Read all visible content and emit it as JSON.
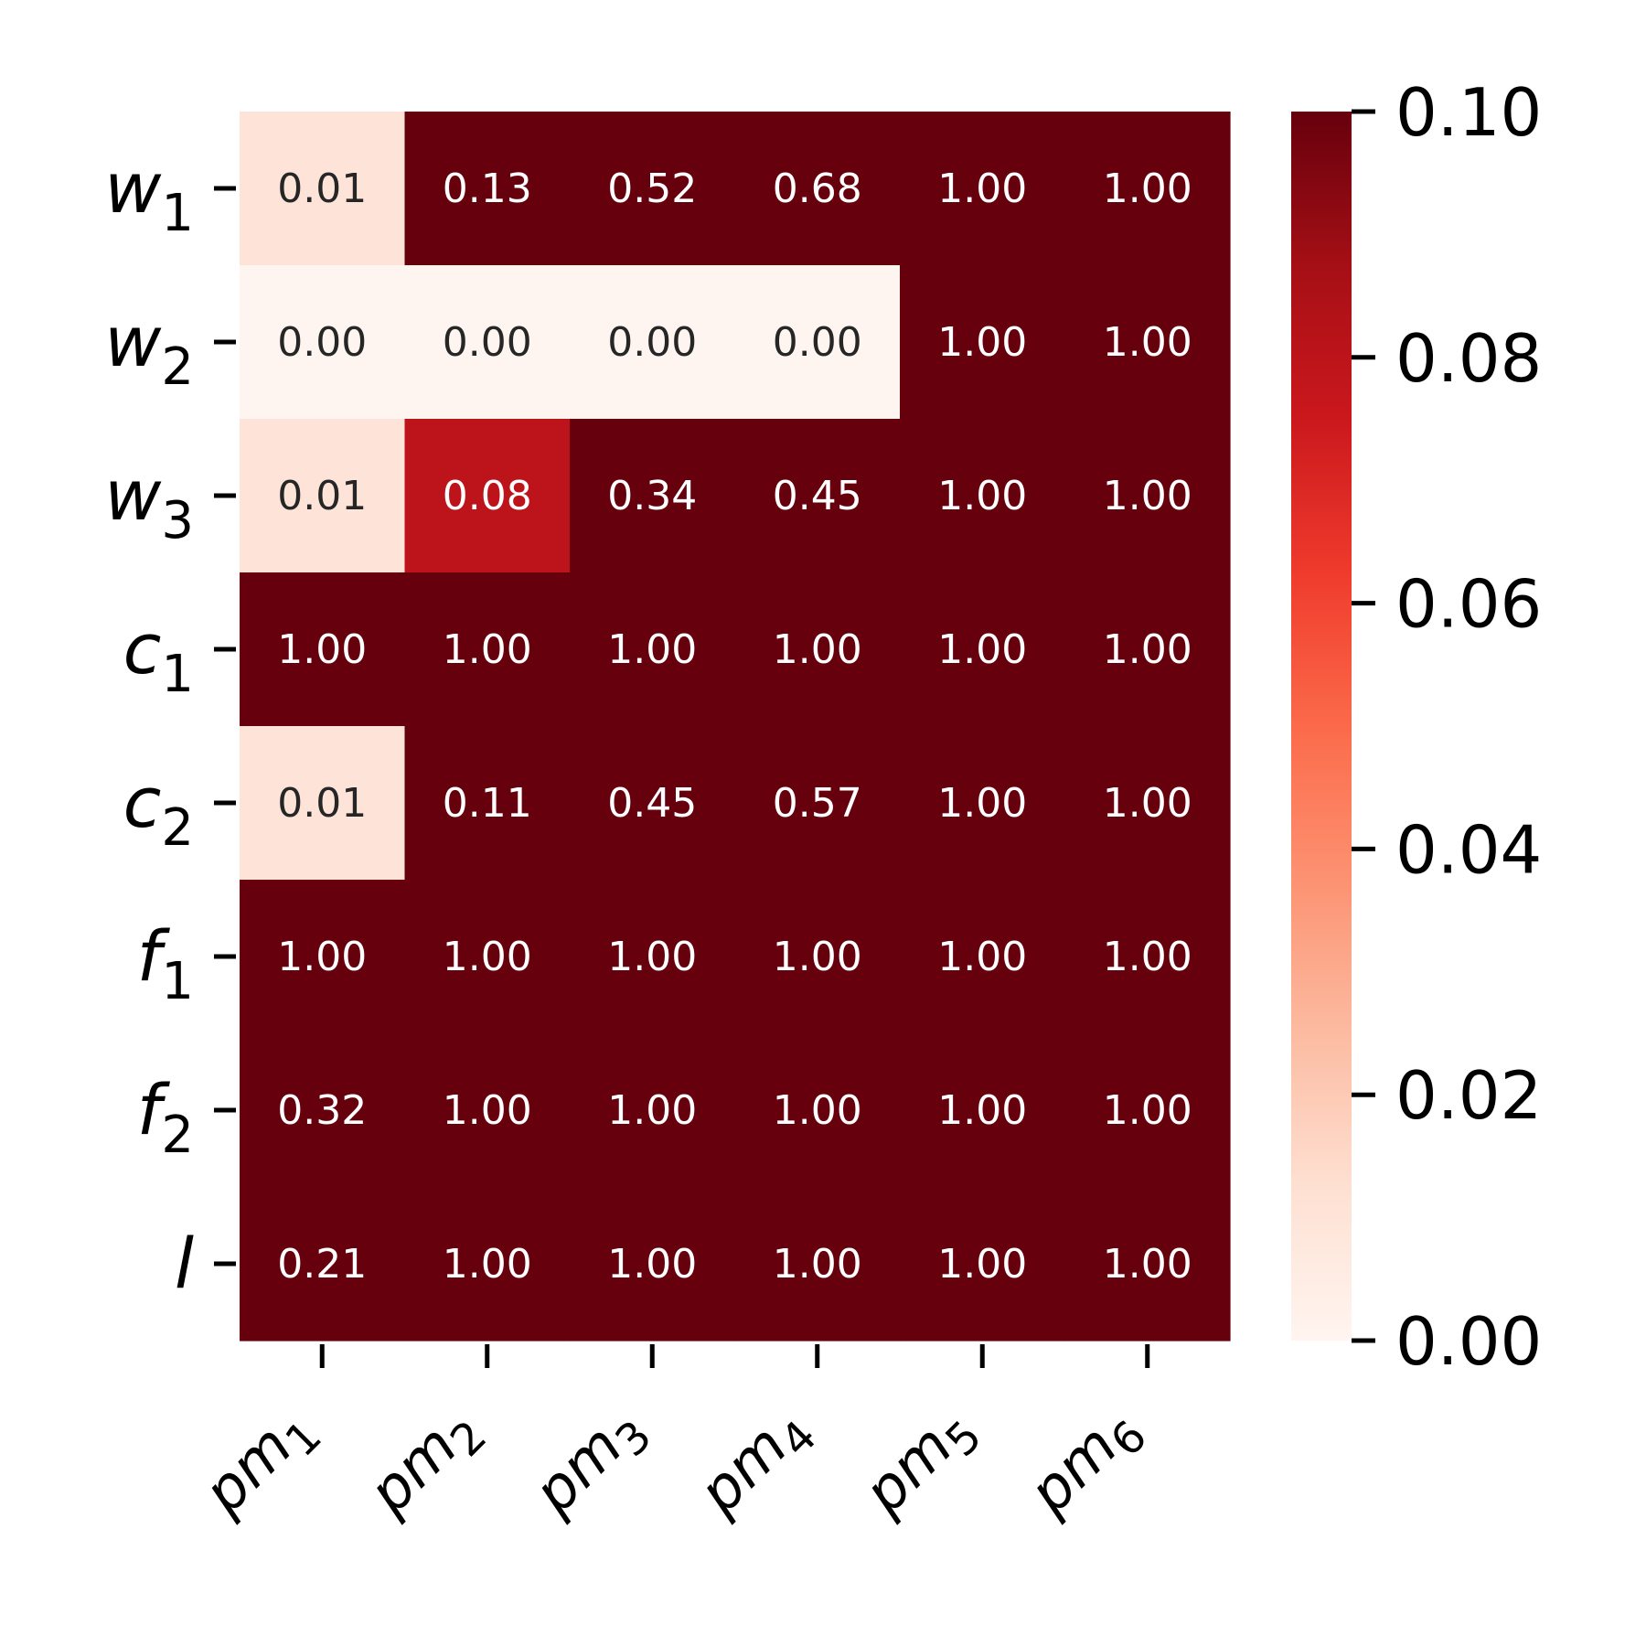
{
  "chart_data": {
    "type": "heatmap",
    "title": "",
    "xlabel": "",
    "ylabel": "",
    "rows": [
      {
        "base": "w",
        "sub": "1"
      },
      {
        "base": "w",
        "sub": "2"
      },
      {
        "base": "w",
        "sub": "3"
      },
      {
        "base": "c",
        "sub": "1"
      },
      {
        "base": "c",
        "sub": "2"
      },
      {
        "base": "f",
        "sub": "1"
      },
      {
        "base": "f",
        "sub": "2"
      },
      {
        "base": "l",
        "sub": ""
      }
    ],
    "columns": [
      {
        "base": "pm",
        "sub": "1"
      },
      {
        "base": "pm",
        "sub": "2"
      },
      {
        "base": "pm",
        "sub": "3"
      },
      {
        "base": "pm",
        "sub": "4"
      },
      {
        "base": "pm",
        "sub": "5"
      },
      {
        "base": "pm",
        "sub": "6"
      }
    ],
    "values": [
      [
        0.01,
        0.13,
        0.52,
        0.68,
        1.0,
        1.0
      ],
      [
        0.0,
        0.0,
        0.0,
        0.0,
        1.0,
        1.0
      ],
      [
        0.01,
        0.08,
        0.34,
        0.45,
        1.0,
        1.0
      ],
      [
        1.0,
        1.0,
        1.0,
        1.0,
        1.0,
        1.0
      ],
      [
        0.01,
        0.11,
        0.45,
        0.57,
        1.0,
        1.0
      ],
      [
        1.0,
        1.0,
        1.0,
        1.0,
        1.0,
        1.0
      ],
      [
        0.32,
        1.0,
        1.0,
        1.0,
        1.0,
        1.0
      ],
      [
        0.21,
        1.0,
        1.0,
        1.0,
        1.0,
        1.0
      ]
    ],
    "value_format": "0.00",
    "colorbar": {
      "colormap": "Reds",
      "vmin": 0.0,
      "vmax": 0.1,
      "ticks": [
        "0.00",
        "0.02",
        "0.04",
        "0.06",
        "0.08",
        "0.10"
      ],
      "colors": [
        "#fff5f0",
        "#fee0d2",
        "#fcbba1",
        "#fc9272",
        "#fb6a4a",
        "#ef3b2c",
        "#cb181d",
        "#a50f15",
        "#67000d"
      ]
    },
    "annotation_colors": {
      "light": "#ffffff",
      "dark": "#262626"
    }
  }
}
